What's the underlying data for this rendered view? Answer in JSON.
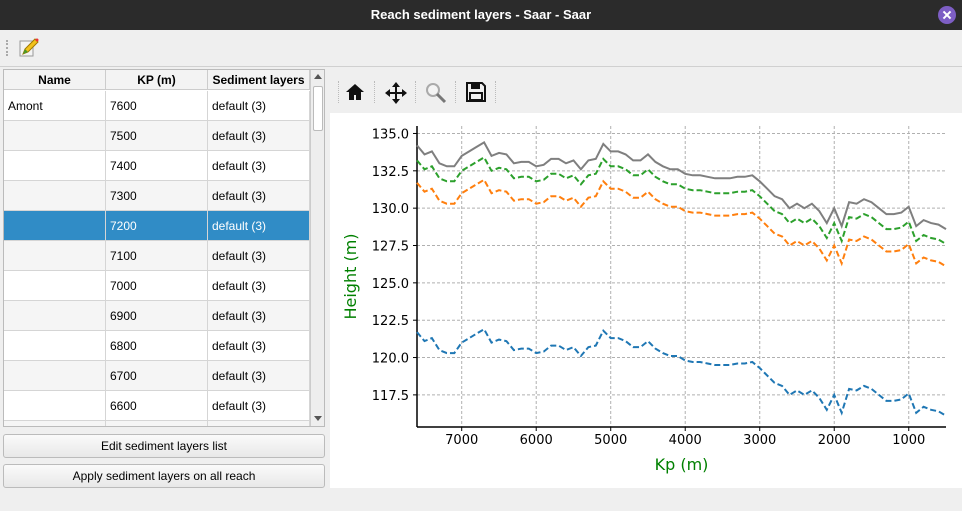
{
  "window": {
    "title": "Reach sediment layers - Saar - Saar",
    "close_icon": "close-icon"
  },
  "toolbar": {
    "edit_icon": "edit-icon"
  },
  "table": {
    "headers": [
      "Name",
      "KP (m)",
      "Sediment layers"
    ],
    "selected_index": 4,
    "rows": [
      {
        "name": "Amont",
        "kp": "7600",
        "layers": "default (3)"
      },
      {
        "name": "",
        "kp": "7500",
        "layers": "default (3)"
      },
      {
        "name": "",
        "kp": "7400",
        "layers": "default (3)"
      },
      {
        "name": "",
        "kp": "7300",
        "layers": "default (3)"
      },
      {
        "name": "",
        "kp": "7200",
        "layers": "default (3)"
      },
      {
        "name": "",
        "kp": "7100",
        "layers": "default (3)"
      },
      {
        "name": "",
        "kp": "7000",
        "layers": "default (3)"
      },
      {
        "name": "",
        "kp": "6900",
        "layers": "default (3)"
      },
      {
        "name": "",
        "kp": "6800",
        "layers": "default (3)"
      },
      {
        "name": "",
        "kp": "6700",
        "layers": "default (3)"
      },
      {
        "name": "",
        "kp": "6600",
        "layers": "default (3)"
      },
      {
        "name": "",
        "kp": "",
        "layers": ""
      }
    ]
  },
  "buttons": {
    "edit": "Edit sediment layers list",
    "apply": "Apply sediment layers on all reach"
  },
  "plot_toolbar": [
    "home-icon",
    "pan-icon",
    "zoom-icon",
    "save-icon"
  ],
  "colors": {
    "selection": "#308cc6",
    "axis_label": "#008000"
  },
  "chart_data": {
    "type": "line",
    "xlabel": "Kp (m)",
    "ylabel": "Height (m)",
    "xlim": [
      7600,
      500
    ],
    "ylim": [
      115.35,
      135.5
    ],
    "x_reversed": true,
    "grid": true,
    "xticks": [
      7000,
      6000,
      5000,
      4000,
      3000,
      2000,
      1000
    ],
    "yticks": [
      "117.5",
      "120.0",
      "122.5",
      "125.0",
      "127.5",
      "130.0",
      "132.5",
      "135.0"
    ],
    "x": [
      7600,
      7500,
      7400,
      7300,
      7200,
      7100,
      7000,
      6900,
      6800,
      6700,
      6600,
      6500,
      6400,
      6300,
      6200,
      6100,
      6000,
      5900,
      5800,
      5700,
      5600,
      5500,
      5400,
      5300,
      5200,
      5100,
      5000,
      4900,
      4800,
      4700,
      4600,
      4500,
      4400,
      4300,
      4200,
      4100,
      4000,
      3900,
      3800,
      3700,
      3600,
      3500,
      3400,
      3300,
      3200,
      3100,
      3000,
      2900,
      2800,
      2700,
      2600,
      2500,
      2400,
      2300,
      2200,
      2100,
      2000,
      1900,
      1800,
      1700,
      1600,
      1500,
      1400,
      1300,
      1200,
      1100,
      1000,
      900,
      800,
      700,
      600,
      500
    ],
    "series": [
      {
        "color": "#7f7f7f",
        "style": "solid",
        "values": [
          134.2,
          133.6,
          133.8,
          133.0,
          132.8,
          132.8,
          133.5,
          133.8,
          134.1,
          134.4,
          133.5,
          133.7,
          133.6,
          133.0,
          133.1,
          133.1,
          132.8,
          132.9,
          133.3,
          133.3,
          133.0,
          133.2,
          132.6,
          133.2,
          133.3,
          134.3,
          133.8,
          133.8,
          133.6,
          133.2,
          133.2,
          133.6,
          133.1,
          132.8,
          132.6,
          132.6,
          132.3,
          132.2,
          132.2,
          132.1,
          132.0,
          132.0,
          132.0,
          132.1,
          132.1,
          132.2,
          131.8,
          131.3,
          130.8,
          130.6,
          130.0,
          130.3,
          130.0,
          130.3,
          129.8,
          129.0,
          130.0,
          128.8,
          130.4,
          130.3,
          130.6,
          130.4,
          130.0,
          129.6,
          129.6,
          129.7,
          130.1,
          128.8,
          129.2,
          129.0,
          128.9,
          128.6
        ]
      },
      {
        "color": "#2ca02c",
        "style": "dashed",
        "values": [
          133.2,
          132.6,
          132.8,
          132.0,
          131.8,
          131.8,
          132.5,
          132.8,
          133.1,
          133.4,
          132.5,
          132.7,
          132.6,
          132.0,
          132.1,
          132.1,
          131.8,
          131.9,
          132.3,
          132.3,
          132.0,
          132.2,
          131.6,
          132.2,
          132.3,
          133.3,
          132.8,
          132.8,
          132.6,
          132.2,
          132.2,
          132.6,
          132.1,
          131.8,
          131.6,
          131.6,
          131.3,
          131.2,
          131.2,
          131.1,
          131.0,
          131.0,
          131.0,
          131.1,
          131.1,
          131.2,
          130.8,
          130.3,
          129.8,
          129.6,
          129.0,
          129.3,
          129.0,
          129.3,
          128.8,
          128.0,
          129.0,
          127.8,
          129.4,
          129.3,
          129.6,
          129.4,
          129.0,
          128.6,
          128.6,
          128.7,
          129.1,
          127.8,
          128.2,
          128.0,
          127.9,
          127.6
        ]
      },
      {
        "color": "#ff7f0e",
        "style": "dashed",
        "values": [
          131.7,
          131.1,
          131.3,
          130.5,
          130.3,
          130.3,
          131.0,
          131.3,
          131.6,
          131.9,
          131.0,
          131.2,
          131.1,
          130.5,
          130.6,
          130.6,
          130.3,
          130.4,
          130.8,
          130.8,
          130.5,
          130.7,
          130.1,
          130.7,
          130.8,
          131.8,
          131.3,
          131.3,
          131.1,
          130.7,
          130.7,
          131.1,
          130.6,
          130.3,
          130.1,
          130.1,
          129.8,
          129.7,
          129.7,
          129.6,
          129.5,
          129.5,
          129.5,
          129.6,
          129.6,
          129.7,
          129.3,
          128.8,
          128.3,
          128.1,
          127.5,
          127.8,
          127.5,
          127.8,
          127.3,
          126.5,
          127.5,
          126.3,
          127.9,
          127.8,
          128.1,
          127.9,
          127.5,
          127.1,
          127.1,
          127.2,
          127.6,
          126.3,
          126.7,
          126.5,
          126.4,
          126.1
        ]
      },
      {
        "color": "#1f77b4",
        "style": "dashed",
        "values": [
          121.7,
          121.1,
          121.3,
          120.5,
          120.3,
          120.3,
          121.0,
          121.3,
          121.6,
          121.9,
          121.0,
          121.2,
          121.1,
          120.5,
          120.6,
          120.6,
          120.3,
          120.4,
          120.8,
          120.8,
          120.5,
          120.7,
          120.1,
          120.7,
          120.8,
          121.8,
          121.3,
          121.3,
          121.1,
          120.7,
          120.7,
          121.1,
          120.6,
          120.3,
          120.1,
          120.1,
          119.8,
          119.7,
          119.7,
          119.6,
          119.5,
          119.5,
          119.5,
          119.6,
          119.6,
          119.7,
          119.3,
          118.8,
          118.3,
          118.1,
          117.5,
          117.8,
          117.5,
          117.8,
          117.3,
          116.5,
          117.5,
          116.3,
          117.9,
          117.8,
          118.1,
          117.9,
          117.5,
          117.1,
          117.1,
          117.2,
          117.6,
          116.3,
          116.7,
          116.5,
          116.4,
          116.1
        ]
      }
    ]
  }
}
